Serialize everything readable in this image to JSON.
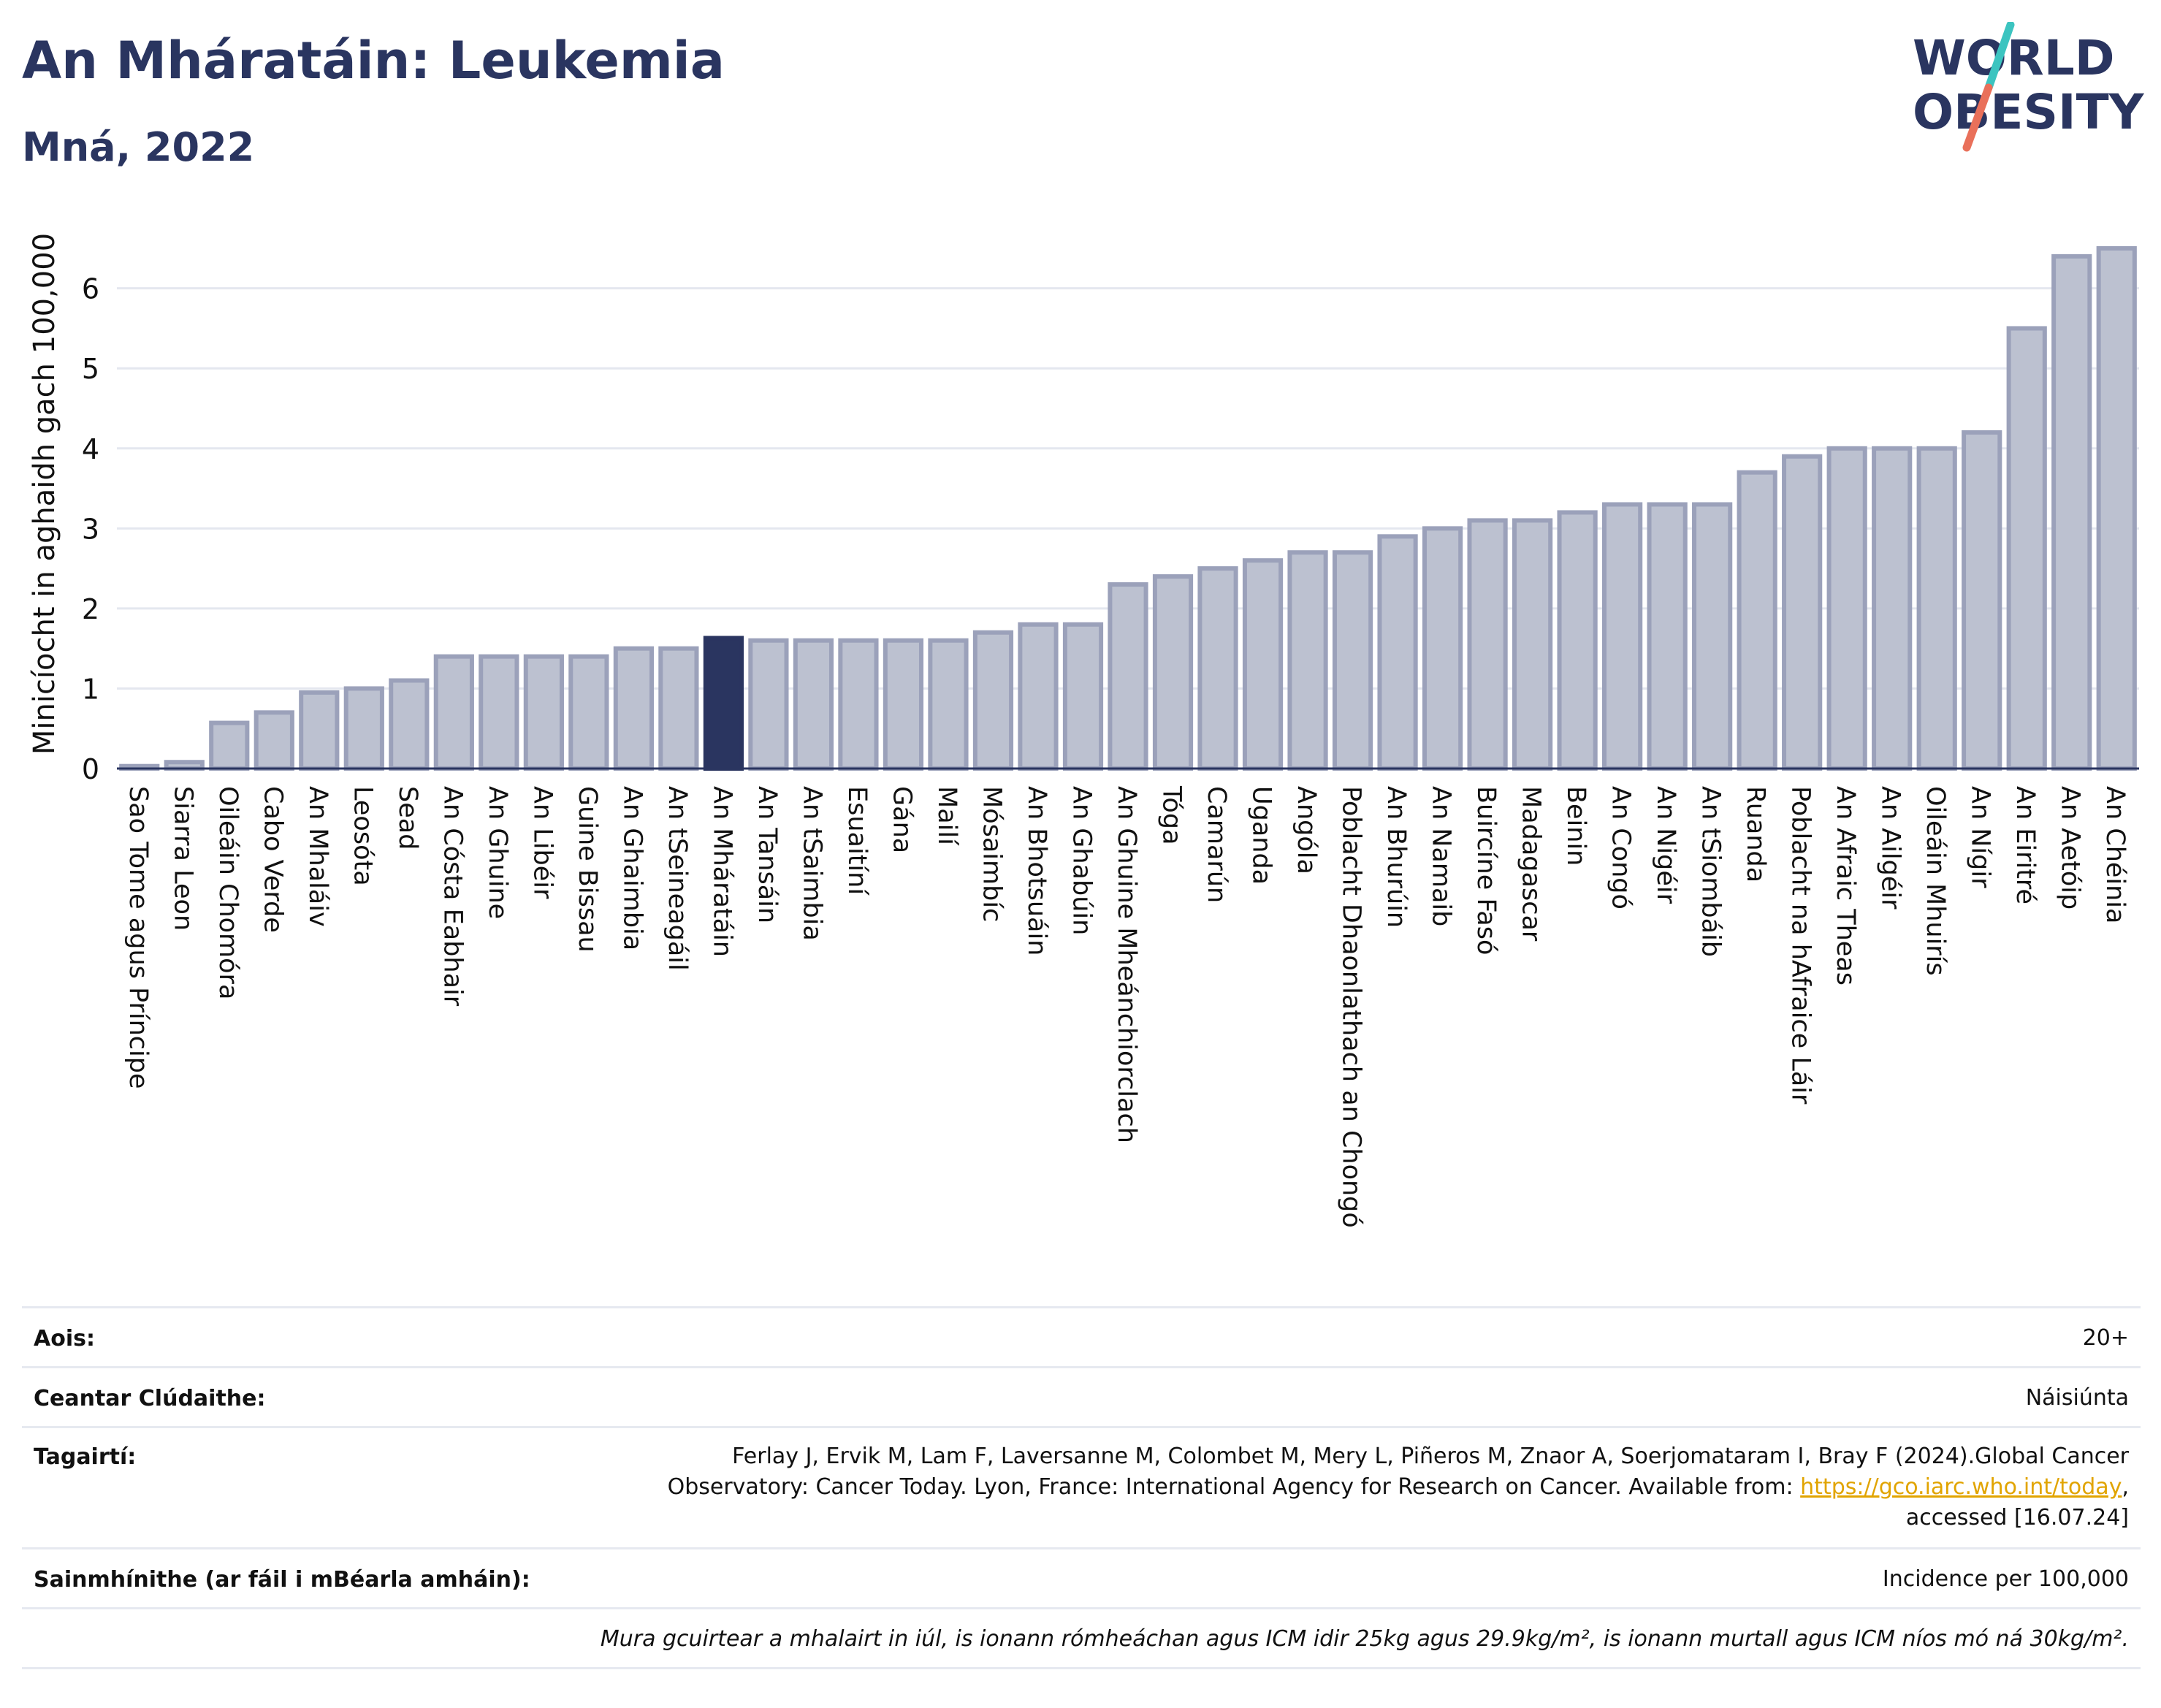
{
  "header": {
    "title": "An Mháratáin: Leukemia",
    "subtitle": "Mná, 2022",
    "logo_line1": "WORLD",
    "logo_line2": "OBESITY"
  },
  "colors": {
    "bar_fill": "#bcc1d0",
    "bar_stroke": "#9ba1ba",
    "highlight": "#2a3560",
    "grid": "#e4e7ef",
    "text": "#2a3560",
    "logo_accent_top": "#3cc4c0",
    "logo_accent_bottom": "#e9705a",
    "link": "#e1a400"
  },
  "chart_data": {
    "type": "bar",
    "title": "An Mháratáin: Leukemia",
    "subtitle": "Mná, 2022",
    "ylabel": "Minicíocht in aghaidh gach 100,000",
    "xlabel": "",
    "ylim": [
      0,
      6.7
    ],
    "yticks": [
      0,
      1,
      2,
      3,
      4,
      5,
      6
    ],
    "grid": true,
    "highlight": "An Mháratáin",
    "categories": [
      "Sao Tome agus Príncipe",
      "Siarra Leon",
      "Oileáin Chomóra",
      "Cabo Verde",
      "An Mhaláiv",
      "Leosóta",
      "Sead",
      "An Cósta Eabhair",
      "An Ghuine",
      "An Libéir",
      "Guine Bissau",
      "An Ghaimbia",
      "An tSeineagáil",
      "An Mháratáin",
      "An Tansáin",
      "An tSaimbia",
      "Esuaitíní",
      "Gána",
      "Mailí",
      "Mósaimbíc",
      "An Bhotsuáin",
      "An Ghabúin",
      "An Ghuine Mheánchiorclach",
      "Tóga",
      "Camarún",
      "Uganda",
      "Angóla",
      "Poblacht Dhaonlathach an Chongó",
      "An Bhurúin",
      "An Namaib",
      "Buircíne Fasó",
      "Madagascar",
      "Beinin",
      "An Congó",
      "An Nigéir",
      "An tSiombáib",
      "Ruanda",
      "Poblacht na hAfraice Láir",
      "An Afraic Theas",
      "An Ailgéir",
      "Oileáin Mhuirís",
      "An Nígir",
      "An Eiritré",
      "An Aetóip",
      "An Chéinia"
    ],
    "values": [
      0.03,
      0.08,
      0.57,
      0.7,
      0.95,
      1.0,
      1.1,
      1.4,
      1.4,
      1.4,
      1.4,
      1.5,
      1.5,
      1.63,
      1.6,
      1.6,
      1.6,
      1.6,
      1.6,
      1.7,
      1.8,
      1.8,
      2.3,
      2.4,
      2.5,
      2.6,
      2.7,
      2.7,
      2.9,
      3.0,
      3.1,
      3.1,
      3.2,
      3.3,
      3.3,
      3.3,
      3.7,
      3.9,
      4.0,
      4.0,
      4.0,
      4.2,
      5.5,
      6.4,
      6.5
    ]
  },
  "meta": {
    "rows": [
      {
        "label": "Aois:",
        "value": "20+"
      },
      {
        "label": "Ceantar Clúdaithe:",
        "value": "Náisiúnta"
      },
      {
        "label": "Tagairtí:",
        "value_line1": "Ferlay J, Ervik M, Lam F, Laversanne M, Colombet M, Mery L, Piñeros M, Znaor A, Soerjomataram I, Bray F (2024).Global Cancer",
        "value_line2": "Observatory: Cancer Today. Lyon, France: International Agency for Research on Cancer. Available from: ",
        "link": "https://gco.iarc.who.int/today",
        "value_line2_end": ",",
        "value_line3": "accessed [16.07.24]"
      },
      {
        "label": "Sainmhínithe (ar fáil i mBéarla amháin):",
        "value": "Incidence per 100,000"
      }
    ],
    "note": "Mura gcuirtear a mhalairt in iúl, is ionann rómheáchan agus ICM idir 25kg agus 29.9kg/m², is ionann murtall agus ICM níos mó ná 30kg/m²."
  }
}
